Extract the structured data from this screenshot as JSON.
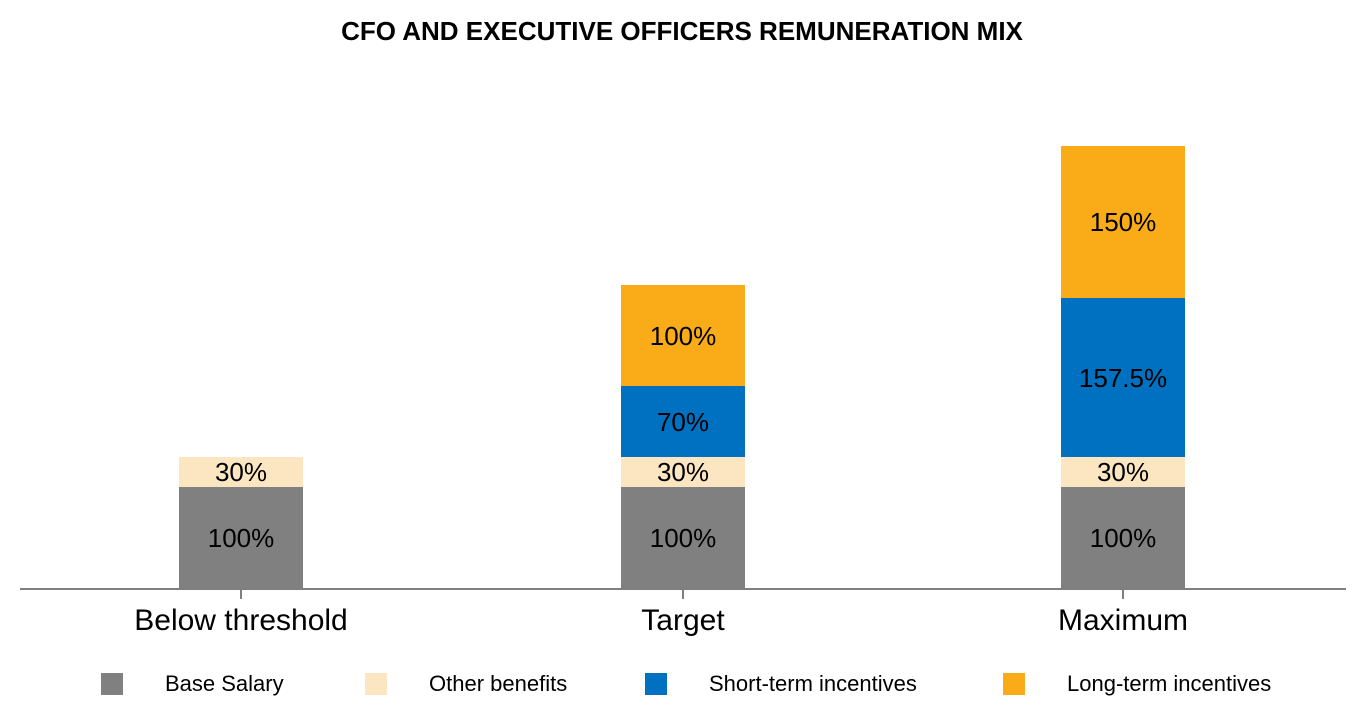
{
  "title": "CFO AND EXECUTIVE OFFICERS REMUNERATION MIX",
  "chart_data": {
    "type": "bar",
    "stacked": true,
    "unit": "%",
    "title": "CFO AND EXECUTIVE OFFICERS REMUNERATION MIX",
    "categories": [
      "Below threshold",
      "Target",
      "Maximum"
    ],
    "series": [
      {
        "name": "Base Salary",
        "color": "#808080",
        "values": [
          100,
          100,
          100
        ]
      },
      {
        "name": "Other benefits",
        "color": "#FCE6C2",
        "values": [
          30,
          30,
          30
        ]
      },
      {
        "name": "Short-term incentives",
        "color": "#0070C0",
        "values": [
          0,
          70,
          157.5
        ]
      },
      {
        "name": "Long-term incentives",
        "color": "#FAAB18",
        "values": [
          0,
          100,
          150
        ]
      }
    ],
    "segment_labels": {
      "Below threshold": [
        "100%",
        "30%"
      ],
      "Target": [
        "100%",
        "30%",
        "70%",
        "100%"
      ],
      "Maximum": [
        "100%",
        "30%",
        "157.5%",
        "150%"
      ]
    },
    "xlabel": "",
    "ylabel": "",
    "y_axis_visible": false,
    "gridlines": false,
    "legend_position": "bottom",
    "background_color": "#FFFFFF",
    "axis_color": "#7F7F7F",
    "label_color": "#000000"
  }
}
